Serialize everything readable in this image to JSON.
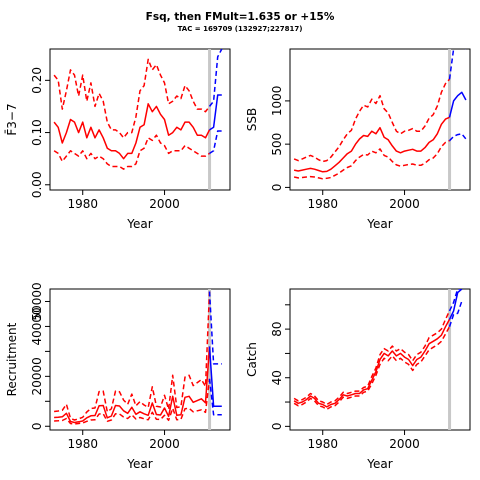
{
  "figure": {
    "title": "Fsq, then FMult=1.635 or +15%",
    "subtitle": "TAC = 169709 (132927;227817)"
  },
  "colors": {
    "historic": "#ff0000",
    "forecast": "#0000ff",
    "marker": "#c8c8c8"
  },
  "chart_data": [
    {
      "type": "line",
      "xlabel": "Year",
      "ylabel": "F̄3−7",
      "xlim": [
        1972,
        2016
      ],
      "ylim": [
        -0.01,
        0.26
      ],
      "xticks": [
        1980,
        2000
      ],
      "yticks": [
        0.0,
        0.1,
        0.2
      ],
      "ytick_labels": [
        "0.00",
        "0.10",
        "0.20"
      ],
      "marker_year": 2011,
      "historic": {
        "x": [
          1973,
          1974,
          1975,
          1976,
          1977,
          1978,
          1979,
          1980,
          1981,
          1982,
          1983,
          1984,
          1985,
          1986,
          1987,
          1988,
          1989,
          1990,
          1991,
          1992,
          1993,
          1994,
          1995,
          1996,
          1997,
          1998,
          1999,
          2000,
          2001,
          2002,
          2003,
          2004,
          2005,
          2006,
          2007,
          2008,
          2009,
          2010,
          2011
        ],
        "median": [
          0.12,
          0.11,
          0.08,
          0.1,
          0.125,
          0.12,
          0.1,
          0.12,
          0.09,
          0.11,
          0.09,
          0.105,
          0.09,
          0.07,
          0.065,
          0.065,
          0.06,
          0.05,
          0.06,
          0.06,
          0.08,
          0.11,
          0.115,
          0.155,
          0.14,
          0.15,
          0.135,
          0.125,
          0.095,
          0.1,
          0.11,
          0.105,
          0.12,
          0.12,
          0.11,
          0.095,
          0.095,
          0.09,
          0.105
        ],
        "lower": [
          0.065,
          0.06,
          0.045,
          0.055,
          0.065,
          0.06,
          0.055,
          0.065,
          0.05,
          0.06,
          0.05,
          0.055,
          0.05,
          0.04,
          0.035,
          0.035,
          0.035,
          0.03,
          0.035,
          0.035,
          0.04,
          0.065,
          0.07,
          0.09,
          0.085,
          0.095,
          0.08,
          0.075,
          0.06,
          0.065,
          0.065,
          0.065,
          0.075,
          0.07,
          0.065,
          0.06,
          0.055,
          0.055,
          0.06
        ],
        "upper": [
          0.21,
          0.2,
          0.145,
          0.18,
          0.22,
          0.21,
          0.17,
          0.21,
          0.16,
          0.195,
          0.15,
          0.175,
          0.16,
          0.12,
          0.105,
          0.105,
          0.1,
          0.09,
          0.1,
          0.1,
          0.13,
          0.18,
          0.19,
          0.24,
          0.22,
          0.23,
          0.21,
          0.195,
          0.155,
          0.16,
          0.17,
          0.165,
          0.19,
          0.18,
          0.16,
          0.145,
          0.145,
          0.14,
          0.15
        ]
      },
      "forecast": {
        "x": [
          2011,
          2012,
          2013,
          2014
        ],
        "median": [
          0.105,
          0.11,
          0.172,
          0.172
        ],
        "lower": [
          0.06,
          0.065,
          0.103,
          0.103
        ],
        "upper": [
          0.15,
          0.16,
          0.245,
          0.26
        ]
      }
    },
    {
      "type": "line",
      "xlabel": "Year",
      "ylabel": "SSB",
      "xlim": [
        1972,
        2016
      ],
      "ylim": [
        -30,
        1600
      ],
      "xticks": [
        1980,
        2000
      ],
      "yticks": [
        0,
        500,
        1000
      ],
      "ytick_labels": [
        "0",
        "500",
        "1000"
      ],
      "marker_year": 2011,
      "historic": {
        "x": [
          1973,
          1974,
          1975,
          1976,
          1977,
          1978,
          1979,
          1980,
          1981,
          1982,
          1983,
          1984,
          1985,
          1986,
          1987,
          1988,
          1989,
          1990,
          1991,
          1992,
          1993,
          1994,
          1995,
          1996,
          1997,
          1998,
          1999,
          2000,
          2001,
          2002,
          2003,
          2004,
          2005,
          2006,
          2007,
          2008,
          2009,
          2010,
          2011
        ],
        "median": [
          200,
          190,
          200,
          210,
          220,
          210,
          195,
          180,
          185,
          210,
          250,
          290,
          340,
          390,
          420,
          500,
          560,
          600,
          590,
          650,
          620,
          690,
          580,
          550,
          480,
          420,
          400,
          420,
          430,
          440,
          420,
          420,
          460,
          520,
          550,
          620,
          730,
          790,
          810
        ],
        "lower": [
          120,
          110,
          115,
          120,
          125,
          120,
          110,
          100,
          105,
          115,
          140,
          165,
          200,
          230,
          250,
          310,
          350,
          380,
          375,
          420,
          400,
          445,
          370,
          350,
          300,
          260,
          245,
          255,
          265,
          270,
          255,
          255,
          280,
          320,
          340,
          390,
          470,
          520,
          540
        ],
        "upper": [
          330,
          310,
          330,
          350,
          370,
          350,
          320,
          300,
          310,
          350,
          410,
          470,
          550,
          620,
          660,
          790,
          880,
          950,
          930,
          1020,
          970,
          1060,
          910,
          860,
          750,
          650,
          620,
          650,
          660,
          680,
          650,
          650,
          710,
          800,
          840,
          940,
          1100,
          1200,
          1250
        ]
      },
      "forecast": {
        "x": [
          2011,
          2012,
          2013,
          2014,
          2015
        ],
        "median": [
          810,
          1000,
          1060,
          1100,
          1010
        ],
        "lower": [
          540,
          590,
          610,
          620,
          560
        ],
        "upper": [
          1250,
          1600,
          1650,
          1700,
          1600
        ]
      }
    },
    {
      "type": "line",
      "xlabel": "Year",
      "ylabel": "Recruitment",
      "xlim": [
        1972,
        2016
      ],
      "ylim": [
        -1500,
        55000
      ],
      "xticks": [
        1980,
        2000
      ],
      "yticks": [
        0,
        10000,
        20000,
        30000,
        40000,
        50000
      ],
      "ytick_labels": [
        "0",
        "",
        "20000",
        "",
        "40000",
        "50000"
      ],
      "marker_year": 2011,
      "historic": {
        "x": [
          1973,
          1974,
          1975,
          1976,
          1977,
          1978,
          1979,
          1980,
          1981,
          1982,
          1983,
          1984,
          1985,
          1986,
          1987,
          1988,
          1989,
          1990,
          1991,
          1992,
          1993,
          1994,
          1995,
          1996,
          1997,
          1998,
          1999,
          2000,
          2001,
          2002,
          2003,
          2004,
          2005,
          2006,
          2007,
          2008,
          2009,
          2010,
          2011
        ],
        "median": [
          3500,
          3600,
          3800,
          5200,
          1900,
          1500,
          1800,
          2100,
          3400,
          4200,
          4300,
          8200,
          8300,
          3400,
          4100,
          8300,
          8100,
          6200,
          5200,
          7600,
          4800,
          5800,
          5000,
          4400,
          9300,
          4700,
          4500,
          7300,
          4000,
          12000,
          4400,
          4600,
          11600,
          12000,
          9600,
          10300,
          11000,
          9400,
          32000
        ],
        "lower": [
          2100,
          2200,
          2300,
          3100,
          1100,
          900,
          1100,
          1300,
          2000,
          2500,
          2600,
          4900,
          5000,
          2000,
          2500,
          5000,
          4900,
          3700,
          3100,
          4600,
          2900,
          3500,
          3000,
          2600,
          5600,
          2800,
          2700,
          4400,
          2400,
          7200,
          2600,
          2800,
          7000,
          7200,
          5800,
          6200,
          6600,
          5600,
          19000
        ],
        "upper": [
          5900,
          6100,
          6400,
          8800,
          3200,
          2500,
          3000,
          3600,
          5700,
          7100,
          7300,
          13900,
          14100,
          5800,
          7000,
          14100,
          13800,
          10500,
          8800,
          12900,
          8200,
          9900,
          8500,
          7500,
          15800,
          8000,
          7700,
          12400,
          6800,
          20400,
          7500,
          7800,
          19700,
          20400,
          16300,
          17500,
          18700,
          16000,
          54000
        ]
      },
      "forecast": {
        "x": [
          2011,
          2012,
          2013,
          2014
        ],
        "median": [
          32000,
          8000,
          8000,
          8000
        ],
        "lower": [
          19000,
          4600,
          4600,
          4600
        ],
        "upper": [
          54000,
          25000,
          25000,
          25000
        ]
      }
    },
    {
      "type": "line",
      "xlabel": "Year",
      "ylabel": "Catch",
      "xlim": [
        1972,
        2016
      ],
      "ylim": [
        -3,
        113
      ],
      "xticks": [
        1980,
        2000
      ],
      "yticks": [
        0,
        20,
        40,
        60,
        80,
        100
      ],
      "ytick_labels": [
        "0",
        "",
        "40",
        "",
        "80",
        ""
      ],
      "marker_year": 2011,
      "historic": {
        "x": [
          1973,
          1974,
          1975,
          1976,
          1977,
          1978,
          1979,
          1980,
          1981,
          1982,
          1983,
          1984,
          1985,
          1986,
          1987,
          1988,
          1989,
          1990,
          1991,
          1992,
          1993,
          1994,
          1995,
          1996,
          1997,
          1998,
          1999,
          2000,
          2001,
          2002,
          2003,
          2004,
          2005,
          2006,
          2007,
          2008,
          2009,
          2010,
          2011
        ],
        "median": [
          21,
          19,
          20,
          22,
          25,
          23,
          19,
          18,
          16,
          18,
          19,
          22,
          26,
          25,
          26,
          27,
          27,
          30,
          31,
          38,
          45,
          55,
          60,
          58,
          62,
          58,
          60,
          57,
          55,
          50,
          55,
          57,
          62,
          68,
          70,
          72,
          75,
          82,
          88
        ],
        "lower": [
          19,
          17,
          18,
          20,
          23,
          21,
          17,
          16,
          14,
          16,
          17,
          20,
          24,
          23,
          24,
          25,
          25,
          28,
          29,
          35,
          42,
          51,
          56,
          54,
          58,
          54,
          56,
          53,
          51,
          46,
          51,
          53,
          58,
          63,
          65,
          67,
          70,
          76,
          82
        ],
        "upper": [
          23,
          21,
          22,
          24,
          27,
          25,
          21,
          20,
          18,
          20,
          21,
          24,
          28,
          27,
          28,
          29,
          29,
          32,
          33,
          41,
          48,
          59,
          64,
          62,
          66,
          62,
          64,
          61,
          59,
          54,
          59,
          61,
          66,
          73,
          75,
          77,
          80,
          88,
          95
        ]
      },
      "forecast": {
        "x": [
          2011,
          2012,
          2013,
          2014
        ],
        "median": [
          88,
          95,
          110,
          113
        ],
        "lower": [
          82,
          92,
          93,
          103
        ],
        "upper": [
          95,
          102,
          113,
          113
        ]
      }
    }
  ]
}
